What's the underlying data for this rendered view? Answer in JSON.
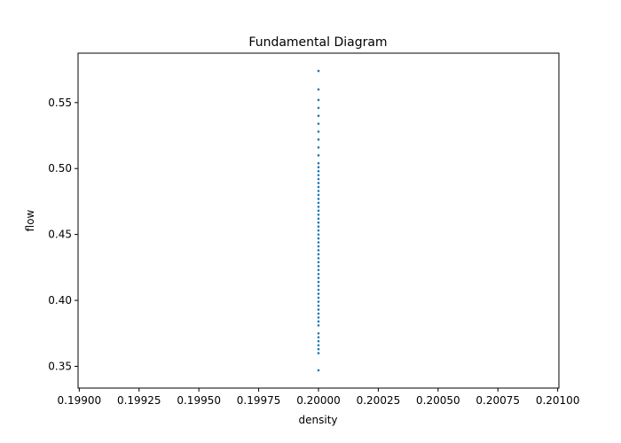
{
  "chart_data": {
    "type": "scatter",
    "title": "Fundamental Diagram",
    "xlabel": "density",
    "ylabel": "flow",
    "xlim": [
      0.198995,
      0.201005
    ],
    "ylim": [
      0.3335,
      0.5875
    ],
    "x_ticks": [
      0.199,
      0.19925,
      0.1995,
      0.19975,
      0.2,
      0.20025,
      0.2005,
      0.20075,
      0.201
    ],
    "x_tick_labels": [
      "0.19900",
      "0.19925",
      "0.19950",
      "0.19975",
      "0.20000",
      "0.20025",
      "0.20050",
      "0.20075",
      "0.20100"
    ],
    "y_ticks": [
      0.35,
      0.4,
      0.45,
      0.5,
      0.55
    ],
    "y_tick_labels": [
      "0.35",
      "0.40",
      "0.45",
      "0.50",
      "0.55"
    ],
    "grid": false,
    "legend": "none",
    "colors": {
      "marker": "#1f77b4",
      "axes": "#000000",
      "background": "#ffffff"
    },
    "series": [
      {
        "x": [
          0.2,
          0.2,
          0.2,
          0.2,
          0.2,
          0.2,
          0.2,
          0.2,
          0.2,
          0.2,
          0.2,
          0.2,
          0.2,
          0.2,
          0.2,
          0.2,
          0.2,
          0.2,
          0.2,
          0.2,
          0.2,
          0.2,
          0.2,
          0.2,
          0.2,
          0.2,
          0.2,
          0.2,
          0.2,
          0.2,
          0.2,
          0.2,
          0.2,
          0.2,
          0.2,
          0.2,
          0.2,
          0.2,
          0.2,
          0.2,
          0.2,
          0.2,
          0.2,
          0.2,
          0.2,
          0.2,
          0.2,
          0.2,
          0.2,
          0.2,
          0.2,
          0.2,
          0.2,
          0.2,
          0.2,
          0.2,
          0.2,
          0.2,
          0.2
        ],
        "y": [
          0.347,
          0.36,
          0.363,
          0.366,
          0.369,
          0.372,
          0.375,
          0.381,
          0.384,
          0.387,
          0.39,
          0.393,
          0.396,
          0.399,
          0.402,
          0.405,
          0.408,
          0.411,
          0.414,
          0.417,
          0.42,
          0.423,
          0.426,
          0.429,
          0.432,
          0.435,
          0.438,
          0.441,
          0.444,
          0.447,
          0.45,
          0.453,
          0.456,
          0.459,
          0.462,
          0.465,
          0.468,
          0.471,
          0.474,
          0.477,
          0.48,
          0.483,
          0.486,
          0.489,
          0.492,
          0.495,
          0.498,
          0.501,
          0.504,
          0.51,
          0.516,
          0.522,
          0.528,
          0.534,
          0.54,
          0.546,
          0.552,
          0.56,
          0.574
        ]
      }
    ]
  }
}
